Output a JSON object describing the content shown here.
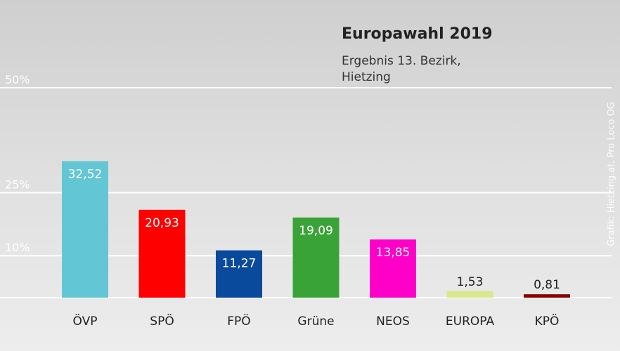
{
  "chart_data": {
    "type": "bar",
    "title": "Europawahl 2019",
    "subtitle": "Ergebnis 13. Bezirk, Hietzing",
    "categories": [
      "ÖVP",
      "SPÖ",
      "FPÖ",
      "Grüne",
      "NEOS",
      "EUROPA",
      "KPÖ"
    ],
    "values": [
      32.52,
      20.93,
      11.27,
      19.09,
      13.85,
      1.53,
      0.81
    ],
    "value_labels": [
      "32,52",
      "20,93",
      "11,27",
      "19,09",
      "13,85",
      "1,53",
      "0,81"
    ],
    "colors": [
      "#62c6d4",
      "#ff0000",
      "#0a4a9c",
      "#3aa337",
      "#ff00c8",
      "#d8e88a",
      "#8a0000"
    ],
    "ylim": [
      0,
      50
    ],
    "gridlines": [
      {
        "value": 50,
        "label": "50%"
      },
      {
        "value": 25,
        "label": "25%"
      },
      {
        "value": 10,
        "label": "10%"
      }
    ],
    "credit": "Grafik: Hietzing.at, Pro Loco OG"
  }
}
